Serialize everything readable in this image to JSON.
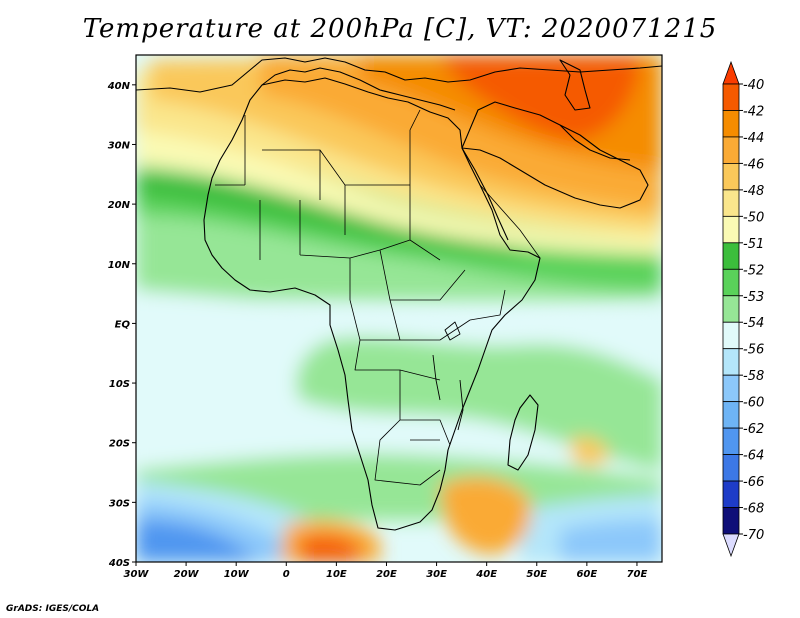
{
  "title": "Temperature at 200hPa [C], VT: 2020071215",
  "credit": "GrADS: IGES/COLA",
  "map": {
    "lon_range": [
      -30,
      75
    ],
    "lat_range": [
      -40,
      45
    ],
    "lon_ticks": [
      {
        "value": -30,
        "label": "30W"
      },
      {
        "value": -20,
        "label": "20W"
      },
      {
        "value": -10,
        "label": "10W"
      },
      {
        "value": 0,
        "label": "0"
      },
      {
        "value": 10,
        "label": "10E"
      },
      {
        "value": 20,
        "label": "20E"
      },
      {
        "value": 30,
        "label": "30E"
      },
      {
        "value": 40,
        "label": "40E"
      },
      {
        "value": 50,
        "label": "50E"
      },
      {
        "value": 60,
        "label": "60E"
      },
      {
        "value": 70,
        "label": "70E"
      }
    ],
    "lat_ticks": [
      {
        "value": 40,
        "label": "40N"
      },
      {
        "value": 30,
        "label": "30N"
      },
      {
        "value": 20,
        "label": "20N"
      },
      {
        "value": 10,
        "label": "10N"
      },
      {
        "value": 0,
        "label": "EQ"
      },
      {
        "value": -10,
        "label": "10S"
      },
      {
        "value": -20,
        "label": "20S"
      },
      {
        "value": -30,
        "label": "30S"
      },
      {
        "value": -40,
        "label": "40S"
      }
    ]
  },
  "colorbar": {
    "labels": [
      "-40",
      "-42",
      "-44",
      "-46",
      "-48",
      "-50",
      "-51",
      "-52",
      "-53",
      "-54",
      "-56",
      "-58",
      "-60",
      "-62",
      "-64",
      "-66",
      "-68",
      "-70"
    ],
    "colors": [
      "#fa3c00",
      "#f55a00",
      "#f58c00",
      "#faaa35",
      "#fac85a",
      "#fae68c",
      "#fafab4",
      "#3cbe3c",
      "#5ad25a",
      "#96e696",
      "#e1fafa",
      "#b4e6fa",
      "#8cc8fa",
      "#6eb4f5",
      "#5096f0",
      "#3c78e6",
      "#1e3cc8",
      "#0f0f78",
      "#dcdcff"
    ]
  },
  "field": {
    "regions": [
      {
        "name": "north-warm-band",
        "color": "#fac85a"
      },
      {
        "name": "middle-east-warm-core",
        "color": "#f58c00"
      },
      {
        "name": "caspian-warmest",
        "color": "#f55a00"
      },
      {
        "name": "sahel-green-band",
        "color": "#5ad25a"
      },
      {
        "name": "tropical-pale",
        "color": "#e1fafa"
      },
      {
        "name": "south-atlantic-cold",
        "color": "#5096f0"
      },
      {
        "name": "south-african-warm",
        "color": "#faaa35"
      },
      {
        "name": "madagascar-warm-patch",
        "color": "#fac85a"
      }
    ]
  }
}
